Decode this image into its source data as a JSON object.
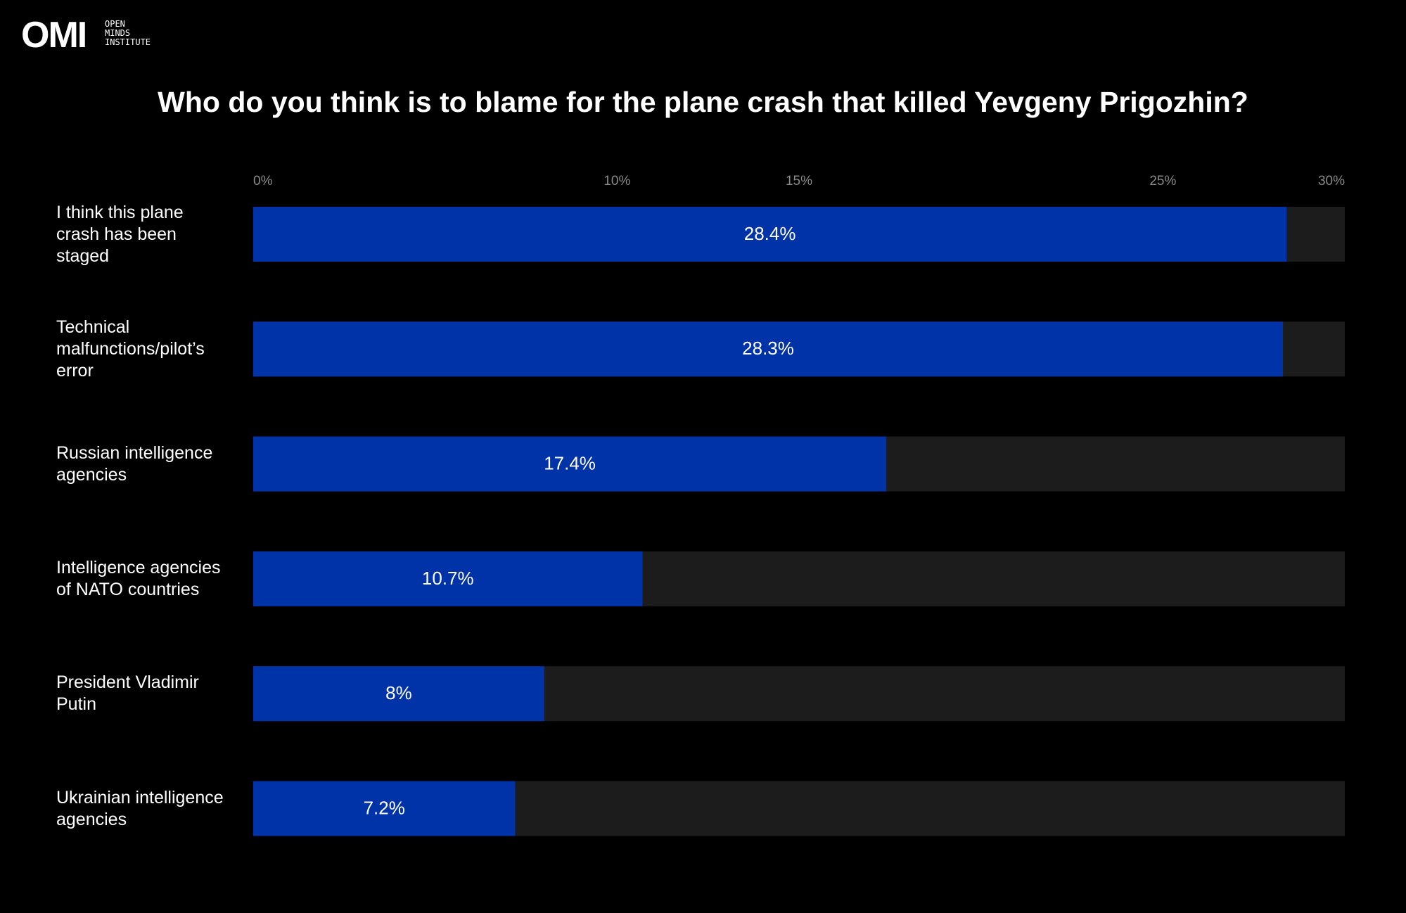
{
  "logo": {
    "mark": "OMI",
    "lines": [
      "OPEN",
      "MINDS",
      "INSTITUTE"
    ]
  },
  "chart_data": {
    "type": "hbar",
    "title": "Who do you think is to blame for the plane crash that killed Yevgeny Prigozhin?",
    "categories": [
      "I think this plane crash has been staged",
      "Technical malfunctions/pilot’s error",
      "Russian intelligence agencies",
      "Intelligence agencies of NATO countries",
      "President Vladimir Putin",
      "Ukrainian intelligence agencies"
    ],
    "values": [
      28.4,
      28.3,
      17.4,
      10.7,
      8,
      7.2
    ],
    "value_labels": [
      "28.4%",
      "28.3%",
      "17.4%",
      "10.7%",
      "8%",
      "7.2%"
    ],
    "color": "#0032a8",
    "track_color": "#1c1c1c",
    "xlim": [
      0,
      30
    ],
    "xticks": [
      {
        "value": 0,
        "label": "0%"
      },
      {
        "value": 10,
        "label": "10%"
      },
      {
        "value": 15,
        "label": "15%"
      },
      {
        "value": 25,
        "label": "25%"
      },
      {
        "value": 30,
        "label": "30%"
      }
    ]
  }
}
